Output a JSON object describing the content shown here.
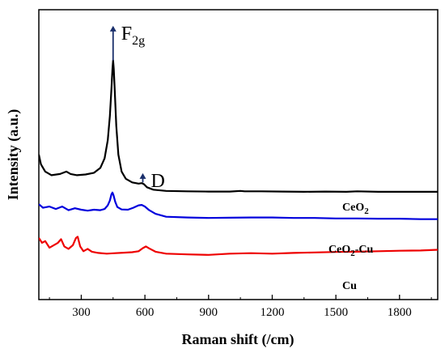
{
  "chart_data": {
    "type": "line",
    "xlabel": "Raman shift (/cm)",
    "ylabel": "Intensity (a.u.)",
    "xlim": [
      100,
      1980
    ],
    "x_ticks": [
      300,
      600,
      900,
      1200,
      1500,
      1800
    ],
    "y_ticks_labeled": false,
    "grid": false,
    "series": [
      {
        "name": "CeO2",
        "label_main": "CeO",
        "label_sub": "2",
        "label_rest": "",
        "color": "#000000",
        "points": [
          [
            100,
            0.6
          ],
          [
            110,
            0.56
          ],
          [
            130,
            0.53
          ],
          [
            160,
            0.515
          ],
          [
            200,
            0.52
          ],
          [
            230,
            0.53
          ],
          [
            250,
            0.52
          ],
          [
            280,
            0.515
          ],
          [
            320,
            0.518
          ],
          [
            360,
            0.525
          ],
          [
            390,
            0.545
          ],
          [
            410,
            0.585
          ],
          [
            425,
            0.66
          ],
          [
            435,
            0.76
          ],
          [
            442,
            0.87
          ],
          [
            447,
            0.955
          ],
          [
            450,
            0.99
          ],
          [
            453,
            0.955
          ],
          [
            458,
            0.86
          ],
          [
            465,
            0.72
          ],
          [
            475,
            0.6
          ],
          [
            490,
            0.53
          ],
          [
            510,
            0.5
          ],
          [
            540,
            0.485
          ],
          [
            570,
            0.48
          ],
          [
            585,
            0.482
          ],
          [
            595,
            0.478
          ],
          [
            610,
            0.465
          ],
          [
            640,
            0.455
          ],
          [
            700,
            0.45
          ],
          [
            800,
            0.448
          ],
          [
            900,
            0.447
          ],
          [
            1000,
            0.447
          ],
          [
            1050,
            0.45
          ],
          [
            1070,
            0.448
          ],
          [
            1150,
            0.448
          ],
          [
            1250,
            0.447
          ],
          [
            1350,
            0.446
          ],
          [
            1450,
            0.447
          ],
          [
            1550,
            0.446
          ],
          [
            1600,
            0.448
          ],
          [
            1700,
            0.446
          ],
          [
            1800,
            0.446
          ],
          [
            1900,
            0.446
          ],
          [
            1980,
            0.446
          ]
        ]
      },
      {
        "name": "CeO2-Cu",
        "label_main": "CeO",
        "label_sub": "2",
        "label_rest": "-Cu",
        "color": "#0000dd",
        "points": [
          [
            100,
            0.395
          ],
          [
            120,
            0.38
          ],
          [
            150,
            0.385
          ],
          [
            180,
            0.375
          ],
          [
            210,
            0.385
          ],
          [
            240,
            0.37
          ],
          [
            270,
            0.378
          ],
          [
            300,
            0.372
          ],
          [
            330,
            0.368
          ],
          [
            360,
            0.372
          ],
          [
            390,
            0.37
          ],
          [
            410,
            0.375
          ],
          [
            425,
            0.39
          ],
          [
            435,
            0.41
          ],
          [
            442,
            0.435
          ],
          [
            447,
            0.443
          ],
          [
            452,
            0.432
          ],
          [
            460,
            0.405
          ],
          [
            470,
            0.383
          ],
          [
            490,
            0.373
          ],
          [
            520,
            0.372
          ],
          [
            545,
            0.38
          ],
          [
            570,
            0.39
          ],
          [
            585,
            0.392
          ],
          [
            600,
            0.385
          ],
          [
            620,
            0.37
          ],
          [
            650,
            0.355
          ],
          [
            700,
            0.343
          ],
          [
            800,
            0.34
          ],
          [
            900,
            0.338
          ],
          [
            1000,
            0.339
          ],
          [
            1100,
            0.34
          ],
          [
            1200,
            0.34
          ],
          [
            1300,
            0.338
          ],
          [
            1400,
            0.338
          ],
          [
            1500,
            0.336
          ],
          [
            1600,
            0.336
          ],
          [
            1700,
            0.335
          ],
          [
            1800,
            0.335
          ],
          [
            1900,
            0.333
          ],
          [
            1980,
            0.333
          ]
        ]
      },
      {
        "name": "Cu",
        "label_main": "Cu",
        "label_sub": "",
        "label_rest": "",
        "color": "#ee0000",
        "points": [
          [
            100,
            0.255
          ],
          [
            115,
            0.235
          ],
          [
            130,
            0.242
          ],
          [
            150,
            0.215
          ],
          [
            170,
            0.225
          ],
          [
            190,
            0.235
          ],
          [
            205,
            0.25
          ],
          [
            220,
            0.22
          ],
          [
            240,
            0.21
          ],
          [
            260,
            0.225
          ],
          [
            275,
            0.255
          ],
          [
            283,
            0.26
          ],
          [
            295,
            0.22
          ],
          [
            310,
            0.2
          ],
          [
            330,
            0.21
          ],
          [
            350,
            0.198
          ],
          [
            380,
            0.193
          ],
          [
            420,
            0.19
          ],
          [
            460,
            0.192
          ],
          [
            500,
            0.194
          ],
          [
            540,
            0.196
          ],
          [
            570,
            0.2
          ],
          [
            590,
            0.213
          ],
          [
            605,
            0.22
          ],
          [
            620,
            0.212
          ],
          [
            650,
            0.198
          ],
          [
            700,
            0.19
          ],
          [
            800,
            0.187
          ],
          [
            900,
            0.185
          ],
          [
            1000,
            0.19
          ],
          [
            1100,
            0.192
          ],
          [
            1200,
            0.19
          ],
          [
            1300,
            0.193
          ],
          [
            1400,
            0.195
          ],
          [
            1500,
            0.197
          ],
          [
            1600,
            0.198
          ],
          [
            1700,
            0.2
          ],
          [
            1800,
            0.202
          ],
          [
            1900,
            0.203
          ],
          [
            1980,
            0.206
          ]
        ]
      }
    ],
    "annotations": [
      {
        "main": "F",
        "sub": "2g",
        "x": 450,
        "y_from": 0.99,
        "y_to": 1.13
      },
      {
        "main": "D",
        "sub": "",
        "x": 590,
        "y_from": 0.485,
        "y_to": 0.52
      }
    ]
  }
}
